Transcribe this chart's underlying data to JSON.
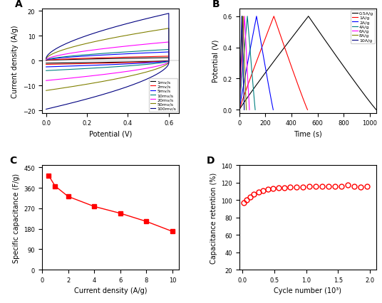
{
  "panel_A": {
    "title": "A",
    "xlabel": "Potential (V)",
    "ylabel": "Current density (A/g)",
    "xlim": [
      -0.02,
      0.65
    ],
    "ylim": [
      -21,
      21
    ],
    "xticks": [
      0.0,
      0.2,
      0.4,
      0.6
    ],
    "yticks": [
      -20,
      -10,
      0,
      10,
      20
    ],
    "curves": [
      {
        "label": "1mv/s",
        "color": "#000000",
        "i_max": 1.2,
        "i_min": -1.0
      },
      {
        "label": "2mv/s",
        "color": "#ff0000",
        "i_max": 1.8,
        "i_min": -1.5
      },
      {
        "label": "5mv/s",
        "color": "#0000ff",
        "i_max": 3.5,
        "i_min": -2.5
      },
      {
        "label": "10mv/s",
        "color": "#008080",
        "i_max": 4.5,
        "i_min": -4.0
      },
      {
        "label": "20mv/s",
        "color": "#ff00ff",
        "i_max": 7.5,
        "i_min": -8.0
      },
      {
        "label": "50mv/s",
        "color": "#808000",
        "i_max": 13.0,
        "i_min": -12.0
      },
      {
        "label": "100mv/s",
        "color": "#000080",
        "i_max": 19.0,
        "i_min": -19.5
      }
    ]
  },
  "panel_B": {
    "title": "B",
    "xlabel": "Time (s)",
    "ylabel": "Potential (V)",
    "xlim": [
      0,
      1050
    ],
    "ylim": [
      -0.02,
      0.65
    ],
    "yticks": [
      0.0,
      0.2,
      0.4,
      0.6
    ],
    "xticks": [
      0,
      200,
      400,
      600,
      800,
      1000
    ],
    "curves": [
      {
        "label": "0.5A/g",
        "color": "#000000",
        "t_charge": 530,
        "t_discharge": 520
      },
      {
        "label": "1A/g",
        "color": "#ff0000",
        "t_charge": 265,
        "t_discharge": 258
      },
      {
        "label": "2A/g",
        "color": "#0000ff",
        "t_charge": 132,
        "t_discharge": 128
      },
      {
        "label": "4A/g",
        "color": "#008080",
        "t_charge": 62,
        "t_discharge": 60
      },
      {
        "label": "6A/g",
        "color": "#ff00ff",
        "t_charge": 40,
        "t_discharge": 38
      },
      {
        "label": "8A/g",
        "color": "#808000",
        "t_charge": 28,
        "t_discharge": 26
      },
      {
        "label": "10A/g",
        "color": "#000080",
        "t_charge": 20,
        "t_discharge": 18
      }
    ]
  },
  "panel_C": {
    "title": "C",
    "xlabel": "Current density (A/g)",
    "ylabel": "Specific capacitance (F/g)",
    "xlim": [
      0,
      10.5
    ],
    "ylim": [
      0,
      460
    ],
    "xticks": [
      0,
      2,
      4,
      6,
      8,
      10
    ],
    "yticks": [
      0,
      90,
      180,
      270,
      360,
      450
    ],
    "x": [
      0.5,
      1,
      2,
      4,
      6,
      8,
      10
    ],
    "y": [
      415,
      368,
      322,
      278,
      248,
      212,
      168
    ],
    "color": "#ff0000"
  },
  "panel_D": {
    "title": "D",
    "xlabel": "Cycle number (10³)",
    "ylabel": "Capacitance retention (%)",
    "xlim": [
      -0.05,
      2.1
    ],
    "ylim": [
      20,
      140
    ],
    "xticks": [
      0,
      0.5,
      1.0,
      1.5,
      2.0
    ],
    "yticks": [
      20,
      40,
      60,
      80,
      100,
      120,
      140
    ],
    "x": [
      0.02,
      0.07,
      0.12,
      0.18,
      0.25,
      0.32,
      0.4,
      0.48,
      0.57,
      0.66,
      0.75,
      0.85,
      0.95,
      1.05,
      1.15,
      1.25,
      1.35,
      1.45,
      1.55,
      1.65,
      1.75,
      1.85,
      1.95
    ],
    "y": [
      97,
      100,
      103,
      107,
      109,
      111,
      112,
      113,
      114,
      114,
      115,
      115,
      115,
      116,
      116,
      116,
      116,
      116,
      116,
      117,
      116,
      115,
      116
    ],
    "color": "#ff0000"
  }
}
